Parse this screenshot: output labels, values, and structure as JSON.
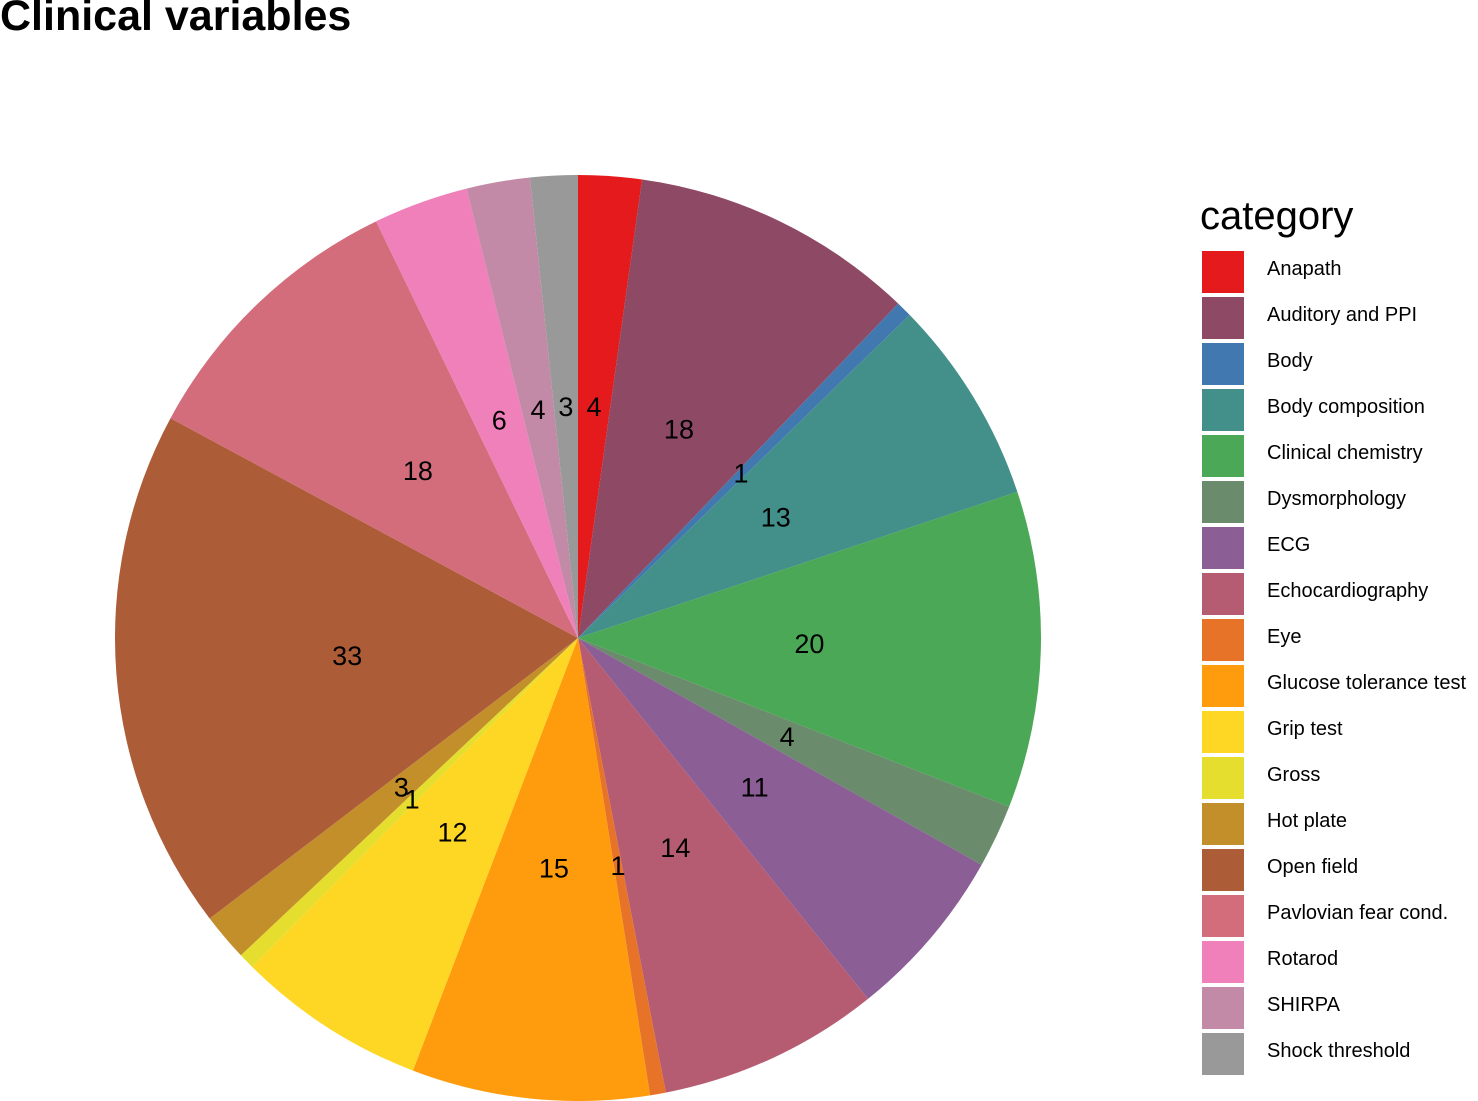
{
  "chart_data": {
    "type": "pie",
    "title": "Clinical variables",
    "legend_title": "category",
    "legend_position": "right",
    "slices": [
      {
        "label": "Anapath",
        "value": 4,
        "color": "#E41A1C"
      },
      {
        "label": "Auditory and PPI",
        "value": 18,
        "color": "#8E4965"
      },
      {
        "label": "Body",
        "value": 1,
        "color": "#4178AF"
      },
      {
        "label": "Body composition",
        "value": 13,
        "color": "#438F89"
      },
      {
        "label": "Clinical chemistry",
        "value": 20,
        "color": "#4BA856"
      },
      {
        "label": "Dysmorphology",
        "value": 4,
        "color": "#6A8B6C"
      },
      {
        "label": "ECG",
        "value": 11,
        "color": "#8B5E96"
      },
      {
        "label": "Echocardiography",
        "value": 14,
        "color": "#B55C73"
      },
      {
        "label": "Eye",
        "value": 1,
        "color": "#E67327"
      },
      {
        "label": "Glucose tolerance test",
        "value": 15,
        "color": "#FE9C0D"
      },
      {
        "label": "Grip test",
        "value": 12,
        "color": "#FED725"
      },
      {
        "label": "Gross",
        "value": 1,
        "color": "#E6DE2F"
      },
      {
        "label": "Hot plate",
        "value": 3,
        "color": "#C38F2B"
      },
      {
        "label": "Open field",
        "value": 33,
        "color": "#AD5C38"
      },
      {
        "label": "Pavlovian fear cond.",
        "value": 18,
        "color": "#D36D7C"
      },
      {
        "label": "Rotarod",
        "value": 6,
        "color": "#EF80BA"
      },
      {
        "label": "SHIRPA",
        "value": 4,
        "color": "#C38AA7"
      },
      {
        "label": "Shock threshold",
        "value": 3,
        "color": "#999999"
      }
    ]
  }
}
